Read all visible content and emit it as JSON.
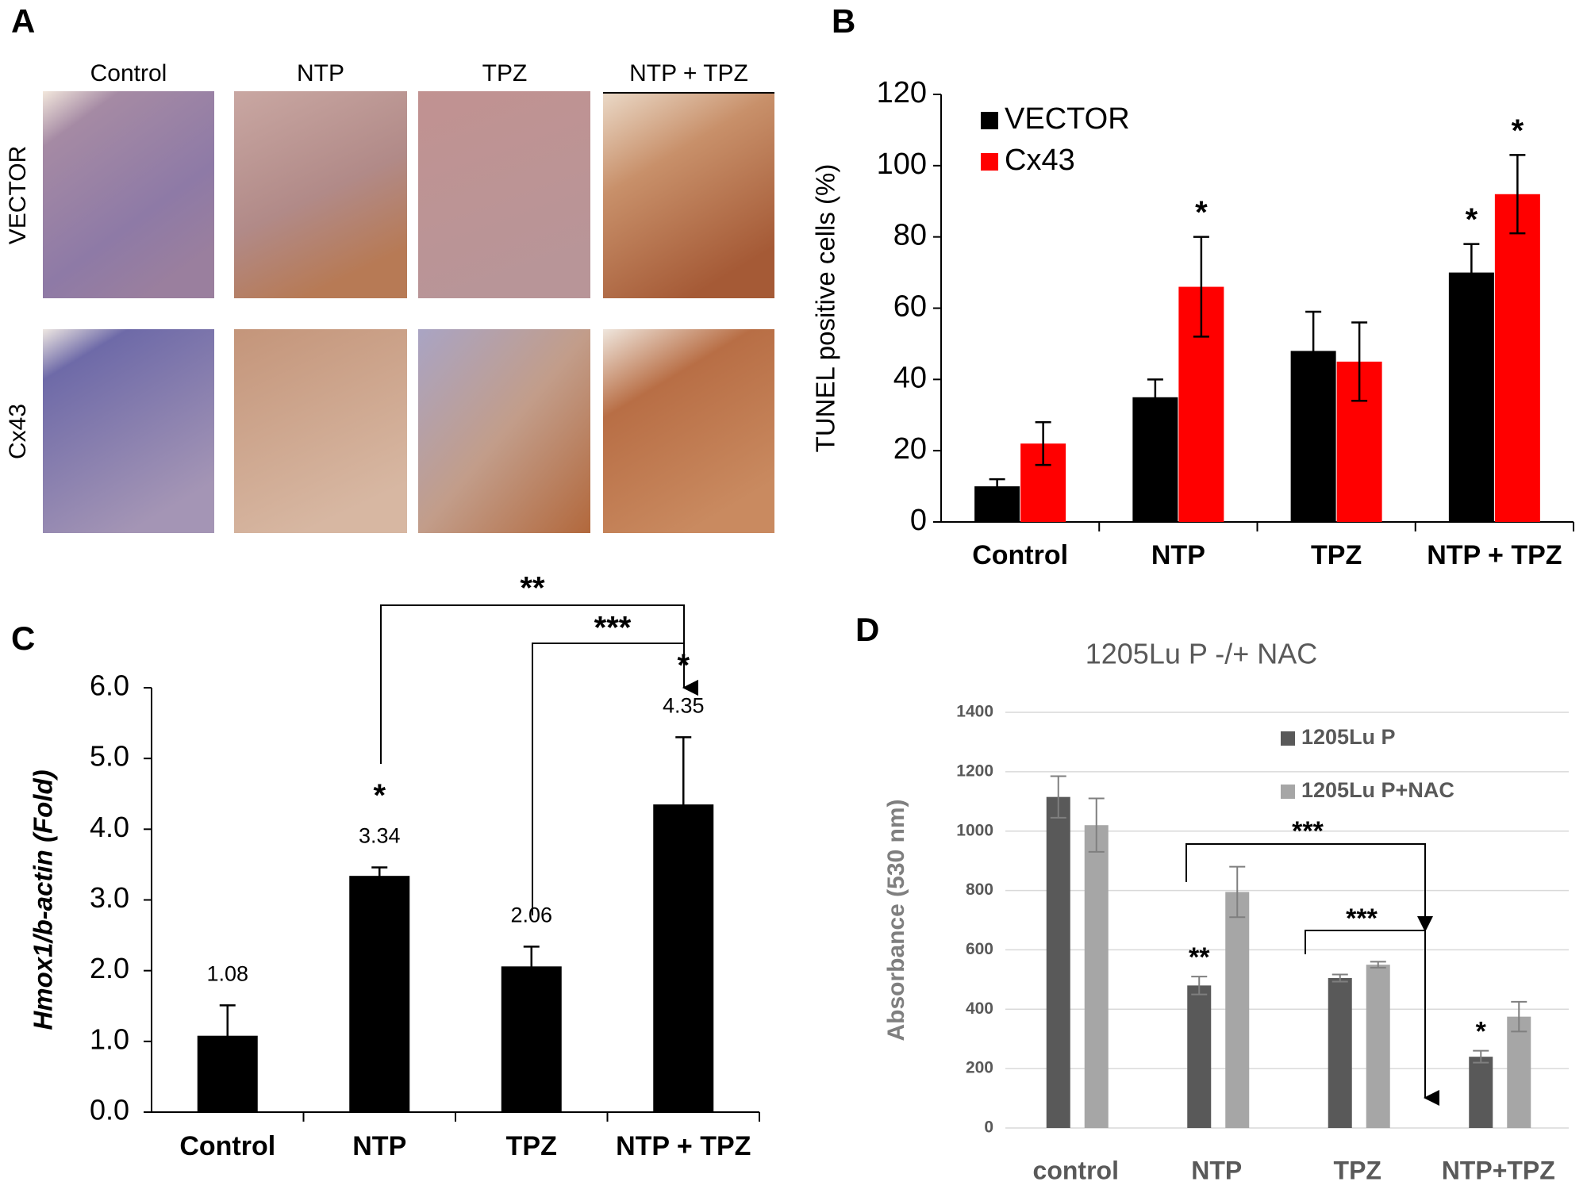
{
  "histology": {
    "panel_label": "A",
    "columns": [
      "Control",
      "NTP",
      "TPZ",
      "NTP + TPZ"
    ],
    "rows": [
      "VECTOR",
      "Cx43"
    ]
  },
  "chart_data": [
    {
      "type": "bar",
      "panel_label": "B",
      "ylabel": "TUNEL positive cells (%)",
      "categories": [
        "Control",
        "NTP",
        "TPZ",
        "NTP + TPZ"
      ],
      "series": [
        {
          "name": "VECTOR",
          "color": "#000000",
          "values": [
            10,
            35,
            48,
            70
          ],
          "errors": [
            2,
            5,
            11,
            8
          ],
          "markers": [
            null,
            null,
            null,
            "*"
          ]
        },
        {
          "name": "Cx43",
          "color": "#ff0000",
          "values": [
            22,
            66,
            45,
            92
          ],
          "errors": [
            6,
            14,
            11,
            11
          ],
          "markers": [
            null,
            "*",
            null,
            "*"
          ]
        }
      ],
      "ylim": [
        0,
        120
      ],
      "yticks": [
        0,
        20,
        40,
        60,
        80,
        100,
        120
      ],
      "legend": "upper left",
      "grid": false
    },
    {
      "type": "bar",
      "panel_label": "C",
      "ylabel": "Hmox1/b-actin (Fold)",
      "categories": [
        "Control",
        "NTP",
        "TPZ",
        "NTP + TPZ"
      ],
      "series": [
        {
          "color": "#000000",
          "values": [
            1.08,
            3.34,
            2.06,
            4.35
          ],
          "errors": [
            0.43,
            0.12,
            0.28,
            0.95
          ],
          "markers": [
            null,
            "*",
            null,
            "*"
          ],
          "show_values": true
        }
      ],
      "brackets": [
        "**",
        "***"
      ],
      "ylim": [
        0,
        6
      ],
      "yticks": [
        {
          "value": 0,
          "label": "0.0"
        },
        {
          "value": 1,
          "label": "1.0"
        },
        {
          "value": 2,
          "label": "2.0"
        },
        {
          "value": 3,
          "label": "3.0"
        },
        {
          "value": 4,
          "label": "4.0"
        },
        {
          "value": 5,
          "label": "5.0"
        },
        {
          "value": 6,
          "label": "6.0"
        }
      ],
      "grid": false
    },
    {
      "type": "bar",
      "panel_label": "D",
      "title": "1205Lu P -/+ NAC",
      "ylabel": "Absorbance (530 nm)",
      "categories": [
        "control",
        "NTP",
        "TPZ",
        "NTP+TPZ"
      ],
      "series": [
        {
          "name": "1205Lu P",
          "color": "#595959",
          "values": [
            1115,
            480,
            505,
            240
          ],
          "errors": [
            70,
            30,
            12,
            20
          ],
          "markers": [
            null,
            "**",
            null,
            "*"
          ]
        },
        {
          "name": "1205Lu P+NAC",
          "color": "#a6a6a6",
          "values": [
            1020,
            795,
            550,
            375
          ],
          "errors": [
            90,
            85,
            10,
            50
          ],
          "markers": [
            null,
            null,
            null,
            null
          ]
        }
      ],
      "brackets": [
        "***",
        "***"
      ],
      "ylim": [
        0,
        1400
      ],
      "yticks": [
        0,
        200,
        400,
        600,
        800,
        1000,
        1200,
        1400
      ],
      "legend": "upper right",
      "grid": true
    }
  ]
}
